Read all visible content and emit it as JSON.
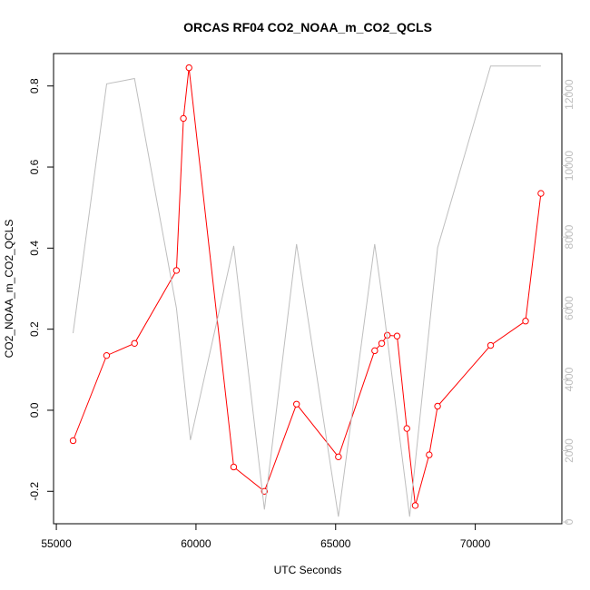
{
  "chart_data": {
    "type": "line",
    "title": "ORCAS RF04 CO2_NOAA_m_CO2_QCLS",
    "xlabel": "UTC Seconds",
    "ylabel": "CO2_NOAA_m_CO2_QCLS",
    "xlim": [
      54900,
      73100
    ],
    "ylim": [
      -0.28,
      0.88
    ],
    "y2lim": [
      -50,
      13150
    ],
    "grid": false,
    "x_ticks": [
      55000,
      60000,
      65000,
      70000
    ],
    "y_ticks": [
      -0.2,
      0.0,
      0.2,
      0.4,
      0.6,
      0.8
    ],
    "y2_ticks": [
      0,
      2000,
      4000,
      6000,
      8000,
      10000,
      12000
    ],
    "x_tick_labels": [
      "55000",
      "60000",
      "65000",
      "70000"
    ],
    "y_tick_labels": [
      "-0.2",
      "0.0",
      "0.2",
      "0.4",
      "0.6",
      "0.8"
    ],
    "y2_tick_labels": [
      "0",
      "2000",
      "4000",
      "6000",
      "8000",
      "10000",
      "12000"
    ],
    "series": [
      {
        "axis": "left",
        "color": "#ff0000",
        "marker": "open-circle",
        "x": [
          55600,
          56800,
          57800,
          59300,
          59550,
          59750,
          61350,
          62450,
          63600,
          65100,
          66400,
          66650,
          66850,
          67200,
          67550,
          67850,
          68350,
          68650,
          70550,
          71800,
          72350
        ],
        "values": [
          -0.075,
          0.135,
          0.165,
          0.345,
          0.72,
          0.845,
          -0.14,
          -0.2,
          0.015,
          -0.115,
          0.147,
          0.165,
          0.185,
          0.183,
          -0.045,
          -0.235,
          -0.11,
          0.01,
          0.16,
          0.22,
          0.535
        ]
      },
      {
        "axis": "right",
        "color": "#bebebe",
        "marker": "none",
        "x": [
          55600,
          56800,
          57800,
          59300,
          59800,
          61350,
          62450,
          63600,
          65100,
          66400,
          66650,
          67650,
          68650,
          70550,
          72350
        ],
        "values": [
          5300,
          12300,
          12450,
          6000,
          2300,
          7750,
          350,
          7800,
          150,
          7800,
          6400,
          150,
          7700,
          12800,
          12800
        ]
      }
    ]
  }
}
